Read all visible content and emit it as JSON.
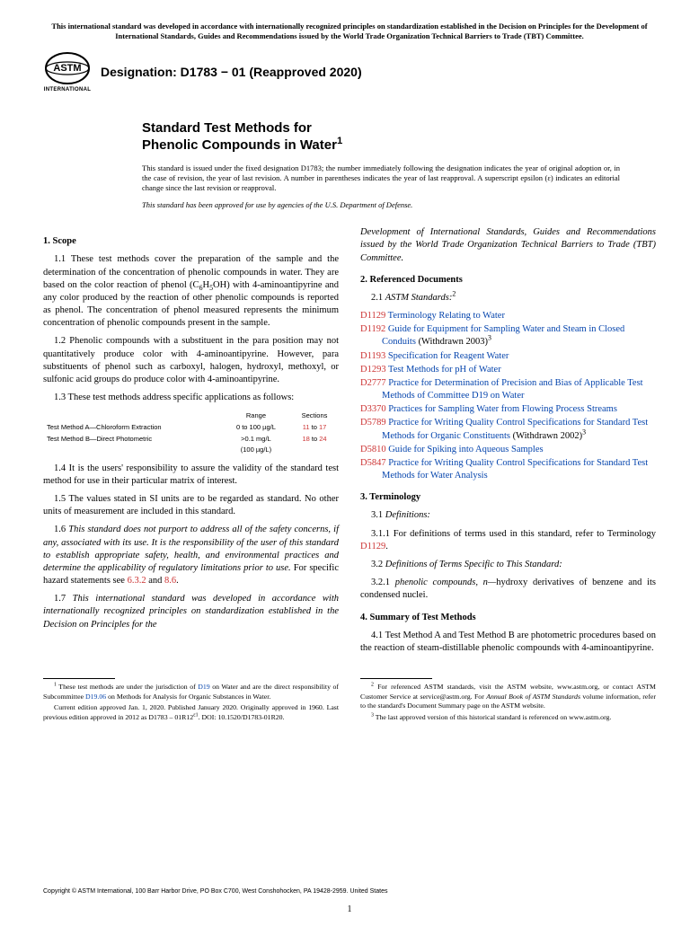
{
  "top_notice": "This international standard was developed in accordance with internationally recognized principles on standardization established in the Decision on Principles for the Development of International Standards, Guides and Recommendations issued by the World Trade Organization Technical Barriers to Trade (TBT) Committee.",
  "logo_label": "INTERNATIONAL",
  "designation": "Designation: D1783 − 01 (Reapproved 2020)",
  "title_line1": "Standard Test Methods for",
  "title_line2": "Phenolic Compounds in Water",
  "title_sup": "1",
  "issue_note": "This standard is issued under the fixed designation D1783; the number immediately following the designation indicates the year of original adoption or, in the case of revision, the year of last revision. A number in parentheses indicates the year of last reapproval. A superscript epsilon (ε) indicates an editorial change since the last revision or reapproval.",
  "dod_note": "This standard has been approved for use by agencies of the U.S. Department of Defense.",
  "s1": {
    "head": "1. Scope",
    "p1a": "1.1 These test methods cover the preparation of the sample and the determination of the concentration of phenolic compounds in water. They are based on the color reaction of phenol (C",
    "p1b": "6",
    "p1c": "H",
    "p1d": "5",
    "p1e": "OH) with 4-aminoantipyrine and any color produced by the reaction of other phenolic compounds is reported as phenol. The concentration of phenol measured represents the minimum concentration of phenolic compounds present in the sample.",
    "p2": "1.2 Phenolic compounds with a substituent in the para position may not quantitatively produce color with 4-aminoantipyrine. However, para substituents of phenol such as carboxyl, halogen, hydroxyl, methoxyl, or sulfonic acid groups do produce color with 4-aminoantipyrine.",
    "p3": "1.3 These test methods address specific applications as follows:",
    "table": {
      "h1": "",
      "h2": "Range",
      "h3": "Sections",
      "r1c1": "Test Method A—Chloroform Extraction",
      "r1c2": "0 to 100 µg/L",
      "r1c3a": "11",
      "r1c3b": " to ",
      "r1c3c": "17",
      "r2c1": "Test Method B—Direct Photometric",
      "r2c2": ">0.1 mg/L",
      "r2c3a": "18",
      "r2c3b": " to ",
      "r2c3c": "24",
      "r3c2": "(100 µg/L)"
    },
    "p4": "1.4 It is the users' responsibility to assure the validity of the standard test method for use in their particular matrix of interest.",
    "p5": "1.5 The values stated in SI units are to be regarded as standard. No other units of measurement are included in this standard.",
    "p6a": "1.6 ",
    "p6b": "This standard does not purport to address all of the safety concerns, if any, associated with its use. It is the responsibility of the user of this standard to establish appropriate safety, health, and environmental practices and determine the applicability of regulatory limitations prior to use.",
    "p6c": " For specific hazard statements see ",
    "p6d": "6.3.2",
    "p6e": " and ",
    "p6f": "8.6",
    "p6g": ".",
    "p7a": "1.7 ",
    "p7b": "This international standard was developed in accordance with internationally recognized principles on standardization established in the Decision on Principles for the",
    "p7c": "Development of International Standards, Guides and Recommendations issued by the World Trade Organization Technical Barriers to Trade (TBT) Committee."
  },
  "s2": {
    "head": "2. Referenced Documents",
    "sub": "ASTM Standards:",
    "subnum": "2.1 ",
    "subsup": "2",
    "refs": [
      {
        "code": "D1129",
        "title": "Terminology Relating to Water",
        "tail": ""
      },
      {
        "code": "D1192",
        "title": "Guide for Equipment for Sampling Water and Steam in Closed Conduits",
        "tail": " (Withdrawn 2003)",
        "tailsup": "3"
      },
      {
        "code": "D1193",
        "title": "Specification for Reagent Water",
        "tail": ""
      },
      {
        "code": "D1293",
        "title": "Test Methods for pH of Water",
        "tail": ""
      },
      {
        "code": "D2777",
        "title": "Practice for Determination of Precision and Bias of Applicable Test Methods of Committee D19 on Water",
        "tail": ""
      },
      {
        "code": "D3370",
        "title": "Practices for Sampling Water from Flowing Process Streams",
        "tail": ""
      },
      {
        "code": "D5789",
        "title": "Practice for Writing Quality Control Specifications for Standard Test Methods for Organic Constituents",
        "tail": " (Withdrawn 2002)",
        "tailsup": "3"
      },
      {
        "code": "D5810",
        "title": "Guide for Spiking into Aqueous Samples",
        "tail": ""
      },
      {
        "code": "D5847",
        "title": "Practice for Writing Quality Control Specifications for Standard Test Methods for Water Analysis",
        "tail": ""
      }
    ]
  },
  "s3": {
    "head": "3. Terminology",
    "sub1num": "3.1 ",
    "sub1": "Definitions:",
    "p1a": "3.1.1 For definitions of terms used in this standard, refer to Terminology ",
    "p1b": "D1129",
    "p1c": ".",
    "sub2num": "3.2 ",
    "sub2": "Definitions of Terms Specific to This Standard:",
    "p2a": "3.2.1 ",
    "p2b": "phenolic compounds, n—",
    "p2c": "hydroxy derivatives of benzene and its condensed nuclei."
  },
  "s4": {
    "head": "4. Summary of Test Methods",
    "p1": "4.1 Test Method A and Test Method B are photometric procedures based on the reaction of steam-distillable phenolic compounds with 4-aminoantipyrine."
  },
  "fn_left": {
    "p1a": "1",
    "p1b": " These test methods are under the jurisdiction of ",
    "p1c": "D19",
    "p1d": " on Water and are the direct responsibility of Subcommittee ",
    "p1e": "D19.06",
    "p1f": " on Methods for Analysis for Organic Substances in Water.",
    "p2a": "Current edition approved Jan. 1, 2020. Published January 2020. Originally approved in 1960. Last previous edition approved in 2012 as D1783 – 01R12",
    "p2b": "ε1",
    "p2c": ". DOI: 10.1520/D1783-01R20."
  },
  "fn_right": {
    "p1a": "2",
    "p1b": " For referenced ASTM standards, visit the ASTM website, www.astm.org, or contact ASTM Customer Service at service@astm.org. For ",
    "p1c": "Annual Book of ASTM Standards",
    "p1d": " volume information, refer to the standard's Document Summary page on the ASTM website.",
    "p2a": "3",
    "p2b": " The last approved version of this historical standard is referenced on www.astm.org."
  },
  "copyright": "Copyright © ASTM International, 100 Barr Harbor Drive, PO Box C700, West Conshohocken, PA 19428-2959. United States",
  "pagenum": "1",
  "colors": {
    "link": "#0645ad",
    "ref": "#cc3333",
    "text": "#000000",
    "bg": "#ffffff"
  }
}
